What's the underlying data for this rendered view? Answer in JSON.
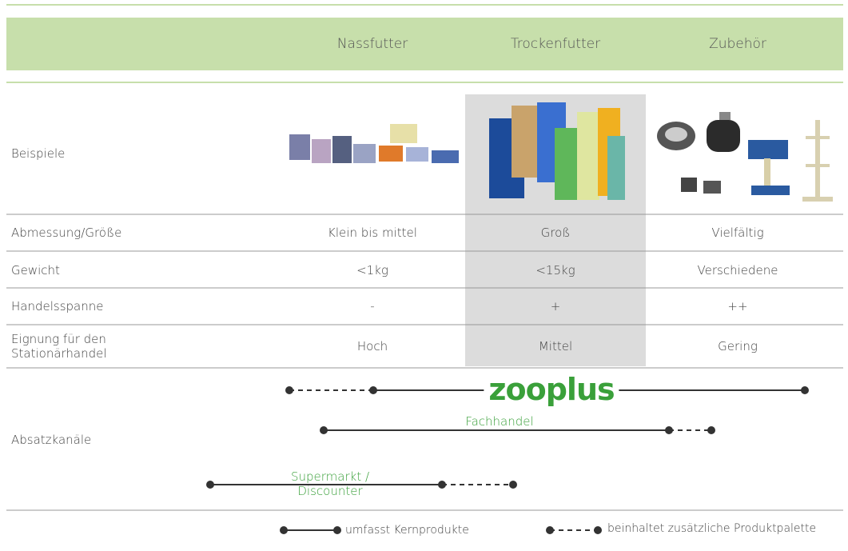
{
  "header": {
    "columns": [
      "Nassfutter",
      "Trockenfutter",
      "Zubehör"
    ]
  },
  "rows": [
    {
      "label": "Beispiele"
    },
    {
      "label": "Abmessung/Größe",
      "cells": [
        "Klein bis mittel",
        "Groß",
        "Vielfältig"
      ]
    },
    {
      "label": "Gewicht",
      "cells": [
        "<1kg",
        "<15kg",
        "Verschiedene"
      ]
    },
    {
      "label": "Handelsspanne",
      "cells": [
        "-",
        "+",
        "++"
      ]
    },
    {
      "label": "Eignung für den Stationärhandel",
      "cells": [
        "Hoch",
        "Mittel",
        "Gering"
      ]
    }
  ],
  "channels": {
    "label": "Absatzkanäle",
    "items": [
      {
        "label": "zooplus"
      },
      {
        "label": "Fachhandel"
      },
      {
        "label": "Supermarkt / Discounter"
      }
    ]
  },
  "legend": [
    {
      "label": "umfasst Kernprodukte"
    },
    {
      "label": "beinhaltet zusätzliche Produktpalette"
    }
  ]
}
